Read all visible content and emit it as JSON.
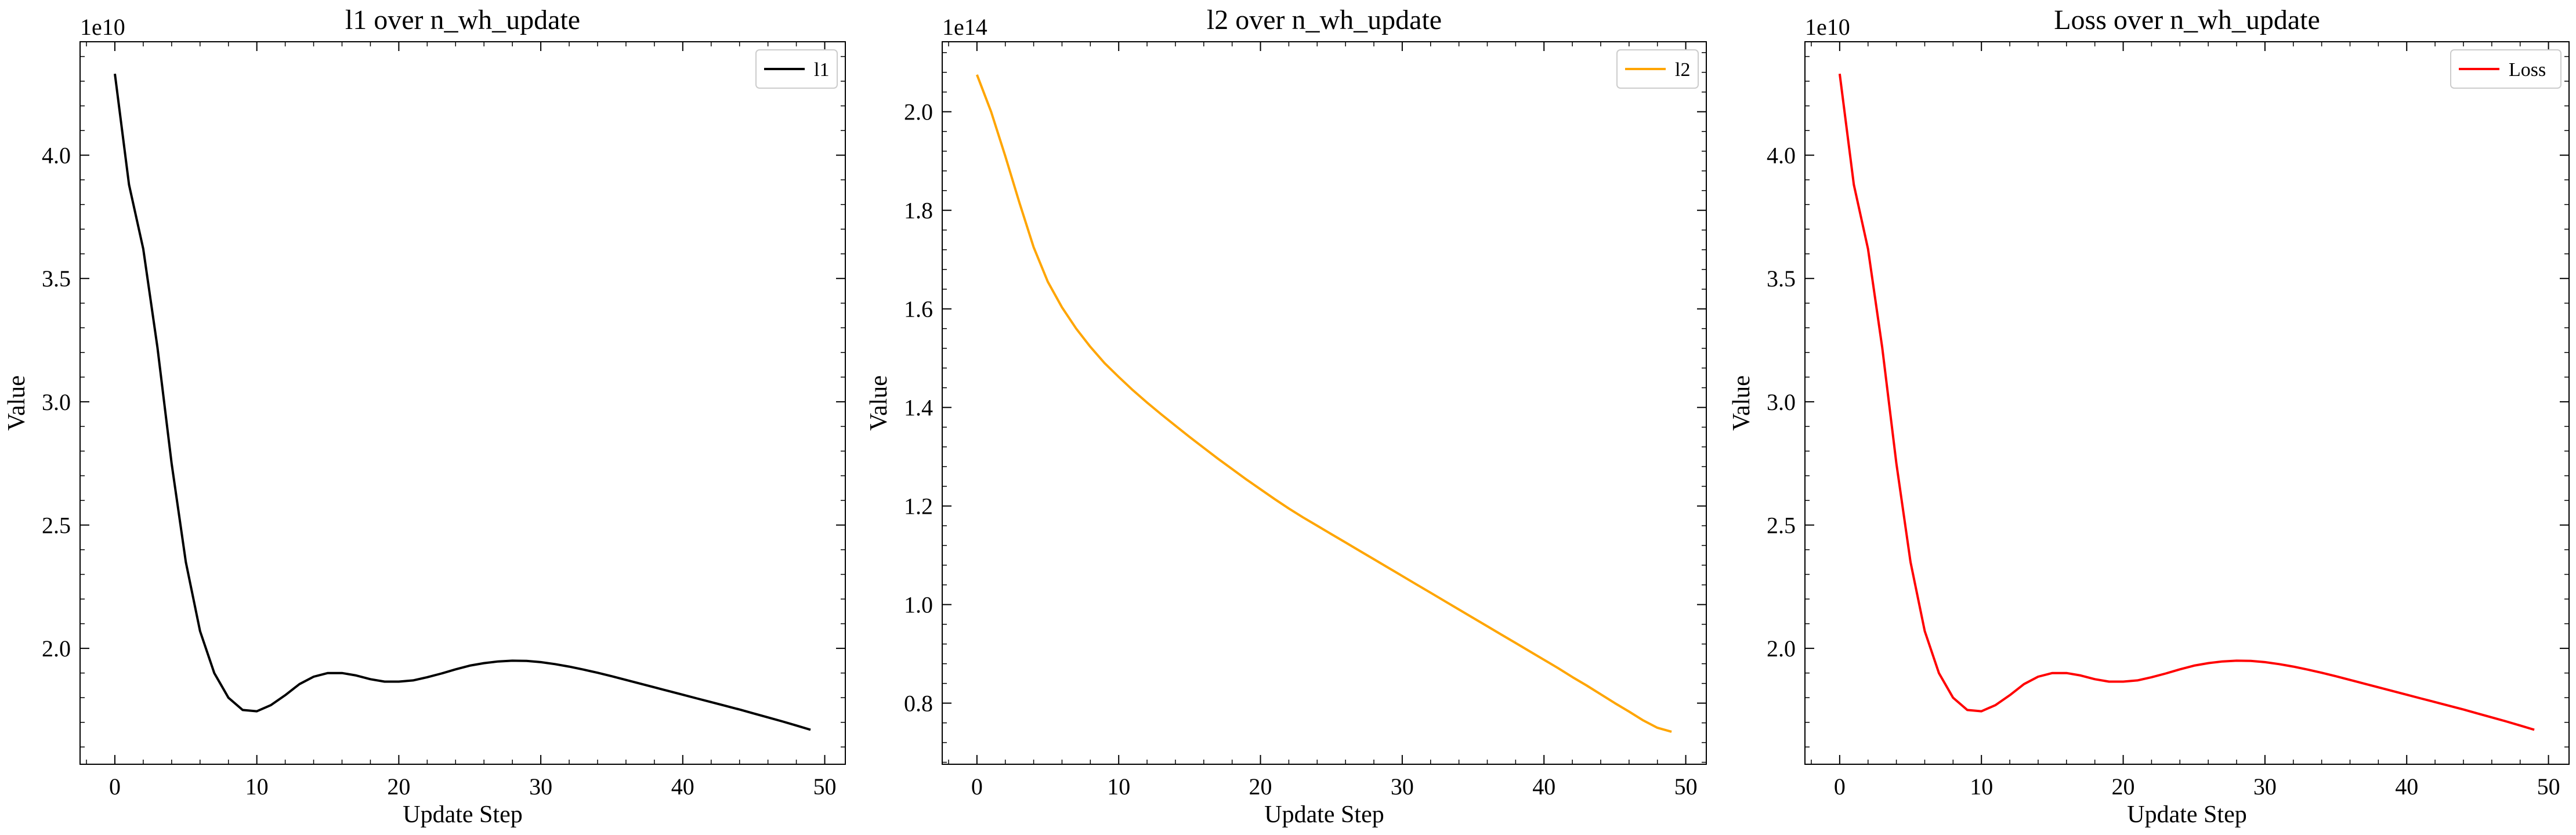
{
  "chart_data": [
    {
      "type": "line",
      "title": "l1 over n_wh_update",
      "xlabel": "Update Step",
      "ylabel": "Value",
      "offset_text": "1e10",
      "xlim": [
        -2.45,
        51.45
      ],
      "ylim": [
        1.53,
        4.46
      ],
      "xticks": [
        0,
        10,
        20,
        30,
        40,
        50
      ],
      "xtick_labels": [
        "0",
        "10",
        "20",
        "30",
        "40",
        "50"
      ],
      "yticks": [
        2.0,
        2.5,
        3.0,
        3.5,
        4.0
      ],
      "ytick_labels": [
        "2.0",
        "2.5",
        "3.0",
        "3.5",
        "4.0"
      ],
      "legend_position": "top-right",
      "series": [
        {
          "name": "l1",
          "color": "#000000",
          "x": [
            0,
            1,
            2,
            3,
            4,
            5,
            6,
            7,
            8,
            9,
            10,
            11,
            12,
            13,
            14,
            15,
            16,
            17,
            18,
            19,
            20,
            21,
            22,
            23,
            24,
            25,
            26,
            27,
            28,
            29,
            30,
            31,
            32,
            33,
            34,
            35,
            36,
            37,
            38,
            39,
            40,
            41,
            42,
            43,
            44,
            45,
            46,
            47,
            48,
            49
          ],
          "y": [
            4.33,
            3.88,
            3.62,
            3.22,
            2.75,
            2.35,
            2.07,
            1.9,
            1.8,
            1.75,
            1.745,
            1.77,
            1.81,
            1.855,
            1.885,
            1.9,
            1.9,
            1.89,
            1.875,
            1.865,
            1.865,
            1.87,
            1.883,
            1.898,
            1.915,
            1.93,
            1.94,
            1.947,
            1.95,
            1.949,
            1.944,
            1.936,
            1.926,
            1.914,
            1.901,
            1.887,
            1.872,
            1.857,
            1.842,
            1.827,
            1.812,
            1.797,
            1.782,
            1.767,
            1.752,
            1.736,
            1.72,
            1.704,
            1.687,
            1.67
          ]
        }
      ]
    },
    {
      "type": "line",
      "title": "l2 over n_wh_update",
      "xlabel": "Update Step",
      "ylabel": "Value",
      "offset_text": "1e14",
      "xlim": [
        -2.45,
        51.45
      ],
      "ylim": [
        0.676,
        2.142
      ],
      "xticks": [
        0,
        10,
        20,
        30,
        40,
        50
      ],
      "xtick_labels": [
        "0",
        "10",
        "20",
        "30",
        "40",
        "50"
      ],
      "yticks": [
        0.8,
        1.0,
        1.2,
        1.4,
        1.6,
        1.8,
        2.0
      ],
      "ytick_labels": [
        "0.8",
        "1.0",
        "1.2",
        "1.4",
        "1.6",
        "1.8",
        "2.0"
      ],
      "legend_position": "top-right",
      "series": [
        {
          "name": "l2",
          "color": "#FFA500",
          "x": [
            0,
            1,
            2,
            3,
            4,
            5,
            6,
            7,
            8,
            9,
            10,
            11,
            12,
            13,
            14,
            15,
            16,
            17,
            18,
            19,
            20,
            21,
            22,
            23,
            24,
            25,
            26,
            27,
            28,
            29,
            30,
            31,
            32,
            33,
            34,
            35,
            36,
            37,
            38,
            39,
            40,
            41,
            42,
            43,
            44,
            45,
            46,
            47,
            48,
            49
          ],
          "y": [
            2.075,
            2.0,
            1.91,
            1.815,
            1.725,
            1.655,
            1.603,
            1.56,
            1.523,
            1.49,
            1.462,
            1.435,
            1.41,
            1.386,
            1.363,
            1.34,
            1.318,
            1.296,
            1.275,
            1.254,
            1.234,
            1.214,
            1.195,
            1.177,
            1.16,
            1.143,
            1.126,
            1.109,
            1.092,
            1.075,
            1.058,
            1.041,
            1.024,
            1.007,
            0.99,
            0.973,
            0.956,
            0.939,
            0.922,
            0.905,
            0.888,
            0.871,
            0.853,
            0.836,
            0.818,
            0.8,
            0.783,
            0.765,
            0.75,
            0.742
          ]
        }
      ]
    },
    {
      "type": "line",
      "title": "Loss over n_wh_update",
      "xlabel": "Update Step",
      "ylabel": "Value",
      "offset_text": "1e10",
      "xlim": [
        -2.45,
        51.45
      ],
      "ylim": [
        1.53,
        4.46
      ],
      "xticks": [
        0,
        10,
        20,
        30,
        40,
        50
      ],
      "xtick_labels": [
        "0",
        "10",
        "20",
        "30",
        "40",
        "50"
      ],
      "yticks": [
        2.0,
        2.5,
        3.0,
        3.5,
        4.0
      ],
      "ytick_labels": [
        "2.0",
        "2.5",
        "3.0",
        "3.5",
        "4.0"
      ],
      "legend_position": "top-right",
      "series": [
        {
          "name": "Loss",
          "color": "#FF0000",
          "x": [
            0,
            1,
            2,
            3,
            4,
            5,
            6,
            7,
            8,
            9,
            10,
            11,
            12,
            13,
            14,
            15,
            16,
            17,
            18,
            19,
            20,
            21,
            22,
            23,
            24,
            25,
            26,
            27,
            28,
            29,
            30,
            31,
            32,
            33,
            34,
            35,
            36,
            37,
            38,
            39,
            40,
            41,
            42,
            43,
            44,
            45,
            46,
            47,
            48,
            49
          ],
          "y": [
            4.33,
            3.88,
            3.62,
            3.22,
            2.75,
            2.35,
            2.07,
            1.9,
            1.8,
            1.75,
            1.745,
            1.77,
            1.81,
            1.855,
            1.885,
            1.9,
            1.9,
            1.89,
            1.875,
            1.865,
            1.865,
            1.87,
            1.883,
            1.898,
            1.915,
            1.93,
            1.94,
            1.947,
            1.95,
            1.949,
            1.944,
            1.936,
            1.926,
            1.914,
            1.901,
            1.887,
            1.872,
            1.857,
            1.842,
            1.827,
            1.812,
            1.797,
            1.782,
            1.767,
            1.752,
            1.736,
            1.72,
            1.704,
            1.687,
            1.67
          ]
        }
      ]
    }
  ]
}
